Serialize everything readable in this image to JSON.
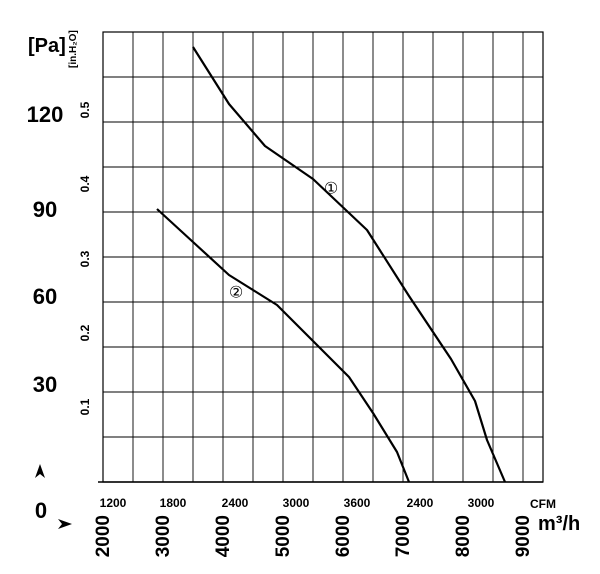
{
  "chart_data": {
    "type": "line",
    "title": "",
    "x_axes": {
      "m3h": {
        "unit": "m³/h",
        "range": [
          2000,
          9000
        ],
        "ticks": [
          "2000",
          "3000",
          "4000",
          "5000",
          "6000",
          "7000",
          "8000",
          "9000"
        ]
      },
      "cfm": {
        "unit": "CFM",
        "ticks": [
          "1200",
          "1800",
          "2400",
          "3000",
          "3600",
          "2400",
          "3000"
        ]
      }
    },
    "y_axes": {
      "pa": {
        "unit": "[Pa]",
        "range": [
          0,
          150
        ],
        "ticks": [
          "0",
          "30",
          "60",
          "90",
          "120"
        ]
      },
      "inh2o": {
        "unit": "[in.H₂O]",
        "ticks": [
          "0.1",
          "0.2",
          "0.3",
          "0.4",
          "0.5"
        ]
      }
    },
    "grid": true,
    "series": [
      {
        "name": "①",
        "points": [
          [
            3500,
            145
          ],
          [
            4100,
            126
          ],
          [
            4700,
            112
          ],
          [
            5500,
            101
          ],
          [
            6400,
            84
          ],
          [
            7100,
            62
          ],
          [
            7800,
            41
          ],
          [
            8200,
            27
          ],
          [
            8400,
            14
          ],
          [
            8700,
            0
          ]
        ]
      },
      {
        "name": "②",
        "points": [
          [
            2900,
            91
          ],
          [
            3500,
            80
          ],
          [
            4100,
            69
          ],
          [
            4900,
            59
          ],
          [
            5500,
            47
          ],
          [
            6100,
            35
          ],
          [
            6500,
            23
          ],
          [
            6900,
            10
          ],
          [
            7100,
            0
          ]
        ]
      }
    ]
  }
}
